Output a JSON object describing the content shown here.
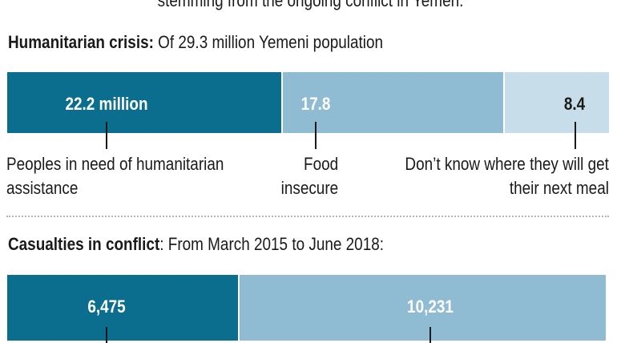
{
  "header_note": "stemming from the ongoing conflict in Yemen.",
  "colors": {
    "dark": "#0b6e8f",
    "mid": "#8fbbd3",
    "light": "#c7dde9"
  },
  "humanitarian": {
    "title_bold": "Humanitarian crisis:",
    "title_rest": " Of 29.3 million Yemeni population",
    "labels": {
      "need_value": "22.2 million",
      "food_value": "17.8",
      "meal_value": "8.4",
      "need_line1": "Peoples in need of humanitarian",
      "need_line2": "assistance",
      "food_line1": "Food",
      "food_line2": "insecure",
      "meal_line1": "Don’t know where they will get",
      "meal_line2": "their next meal"
    }
  },
  "casualties": {
    "title_bold": "Casualties in conflict",
    "title_rest": ": From March 2015 to June 2018:",
    "labels": {
      "a_value": "6,475",
      "b_value": "10,231"
    }
  },
  "chart_data": [
    {
      "type": "bar",
      "title": "Humanitarian crisis: Of 29.3 million Yemeni population",
      "unit": "million",
      "categories": [
        "Peoples in need of humanitarian assistance",
        "Food insecure",
        "Don’t know where they will get their next meal"
      ],
      "values": [
        22.2,
        17.8,
        8.4
      ],
      "segment_widths": [
        22.2,
        17.8,
        8.4
      ],
      "total": 48.4,
      "ticks_as_shown": [
        "22.2 million",
        "17.8",
        "8.4"
      ]
    },
    {
      "type": "bar",
      "title": "Casualties in conflict: From March 2015 to June 2018:",
      "values": [
        6475,
        10231
      ],
      "ticks_as_shown": [
        "6,475",
        "10,231"
      ]
    }
  ]
}
